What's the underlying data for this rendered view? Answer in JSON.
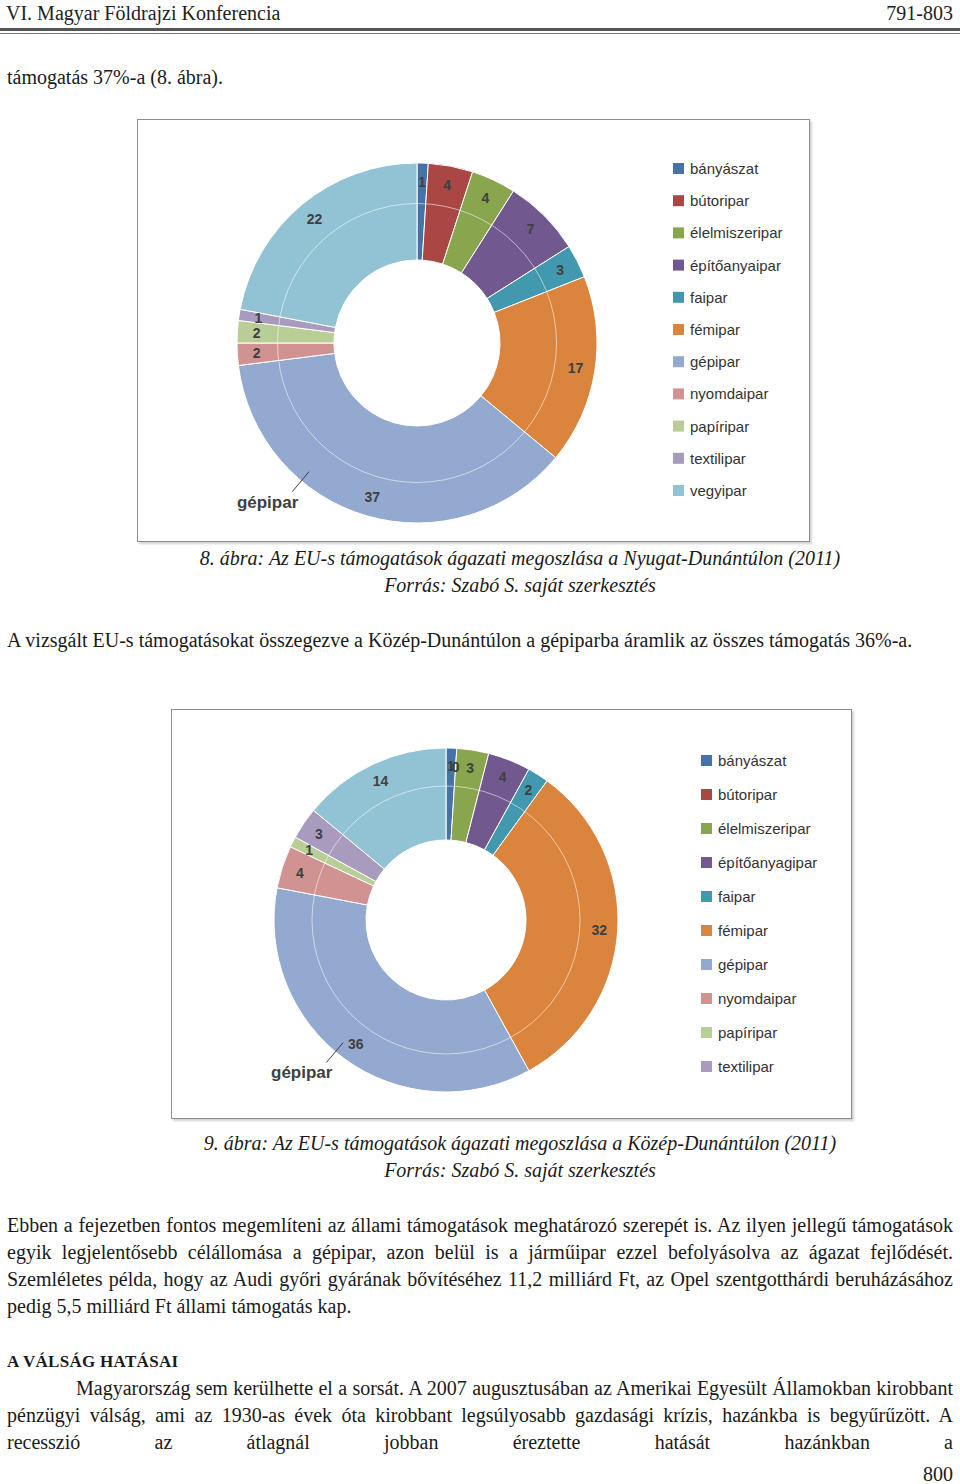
{
  "header": {
    "title": "VI. Magyar Földrajzi Konferencia",
    "pages": "791-803"
  },
  "paragraphs": [
    "támogatás 37%-a (8. ábra).",
    "A vizsgált EU-s támogatásokat összegezve a Közép-Dunántúlon a gépiparba áramlik az összes támogatás 36%-a.",
    "Ebben a fejezetben fontos megemlíteni az állami támogatások meghatározó szerepét is. Az ilyen jellegű támogatások egyik legjelentősebb célállomása a gépipar, azon belül is a járműipar ezzel befolyásolva az ágazat fejlődését. Szemléletes példa, hogy az Audi győri gyárának bővítéséhez 11,2 milliárd Ft, az Opel szentgotthárdi beruházásához pedig 5,5 milliárd Ft állami támogatás kap."
  ],
  "section": {
    "heading": "A VÁLSÁG HATÁSAI",
    "paragraphs": [
      "Magyarország sem kerülhette el a sorsát. A 2007 augusztusában az Amerikai Egyesült Államokban kirobbant pénzügyi válság, ami az 1930-as évek óta kirobbant legsúlyosabb gazdasági krízis, hazánkba is begyűrűzött. A recesszió az átlagnál jobban éreztette hatását hazánkban a"
    ]
  },
  "page_number": "800",
  "chart_data": [
    {
      "type": "donut",
      "title": "8. ábra: Az EU-s támogatások ágazati megoszlása a Nyugat-Dunántúlon (2011)",
      "subtitle": "Forrás: Szabó S. saját szerkesztés",
      "categories": [
        "bányászat",
        "bútoripar",
        "élelmiszeripar",
        "építőanyaipar",
        "faipar",
        "fémipar",
        "gépipar",
        "nyomdaipar",
        "papíripar",
        "textilipar",
        "vegyipar"
      ],
      "values": [
        1,
        4,
        4,
        7,
        3,
        17,
        37,
        2,
        2,
        1,
        22
      ],
      "colors": [
        "#4572a7",
        "#aa4643",
        "#89a54e",
        "#71588f",
        "#4198af",
        "#db843d",
        "#93a9cf",
        "#d19392",
        "#b9cd96",
        "#a99bbd",
        "#92c3d4"
      ],
      "data_labels": true,
      "legend": "right",
      "annotations": [
        "gépipar"
      ]
    },
    {
      "type": "donut",
      "title": "9. ábra: Az EU-s támogatások ágazati megoszlása a Közép-Dunántúlon (2011)",
      "subtitle": "Forrás: Szabó S. saját szerkesztés",
      "categories": [
        "bányászat",
        "bútoripar",
        "élelmiszeripar",
        "építőanyagipar",
        "faipar",
        "fémipar",
        "gépipar",
        "nyomdaipar",
        "papíripar",
        "textilipar",
        null
      ],
      "values": [
        1,
        0,
        3,
        4,
        2,
        32,
        36,
        4,
        1,
        3,
        14
      ],
      "colors": [
        "#4572a7",
        "#aa4643",
        "#89a54e",
        "#71588f",
        "#4198af",
        "#db843d",
        "#93a9cf",
        "#d19392",
        "#b9cd96",
        "#a99bbd",
        "#92c3d4"
      ],
      "data_labels": true,
      "legend": "right",
      "annotations": [
        "gépipar"
      ]
    }
  ]
}
